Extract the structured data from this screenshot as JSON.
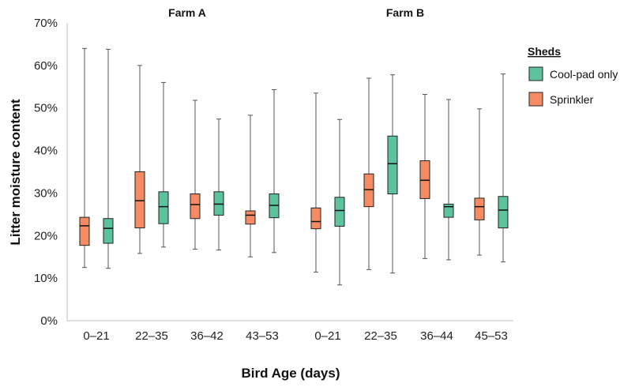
{
  "chart_data": {
    "type": "box",
    "ylabel": "Litter moisture content",
    "xlabel": "Bird Age (days)",
    "ylim": [
      0,
      70
    ],
    "yticks": [
      "0%",
      "10%",
      "20%",
      "30%",
      "40%",
      "50%",
      "60%",
      "70%"
    ],
    "grid": false,
    "legend": {
      "title": "Sheds",
      "placement": "right",
      "entries": [
        {
          "name": "Cool-pad only",
          "color": "#5dc39c"
        },
        {
          "name": "Sprinkler",
          "color": "#f58a63"
        }
      ]
    },
    "panels": [
      {
        "title": "Farm A",
        "groups": [
          {
            "category": "0–21",
            "sprinkler": {
              "min": 12.5,
              "q1": 17.7,
              "median": 22.3,
              "q3": 24.3,
              "max": 64.0
            },
            "cool_pad": {
              "min": 12.3,
              "q1": 18.2,
              "median": 21.7,
              "q3": 24.0,
              "max": 63.8
            }
          },
          {
            "category": "22–35",
            "sprinkler": {
              "min": 15.8,
              "q1": 21.8,
              "median": 28.2,
              "q3": 35.0,
              "max": 60.0
            },
            "cool_pad": {
              "min": 17.3,
              "q1": 22.8,
              "median": 26.8,
              "q3": 30.3,
              "max": 56.0
            }
          },
          {
            "category": "36–42",
            "sprinkler": {
              "min": 16.8,
              "q1": 24.0,
              "median": 27.3,
              "q3": 29.8,
              "max": 51.8
            },
            "cool_pad": {
              "min": 16.6,
              "q1": 24.8,
              "median": 27.4,
              "q3": 30.3,
              "max": 47.4
            }
          },
          {
            "category": "43–53",
            "sprinkler": {
              "min": 15.0,
              "q1": 22.7,
              "median": 24.8,
              "q3": 25.8,
              "max": 48.3
            },
            "cool_pad": {
              "min": 16.0,
              "q1": 24.2,
              "median": 27.1,
              "q3": 29.8,
              "max": 54.3
            }
          }
        ]
      },
      {
        "title": "Farm B",
        "groups": [
          {
            "category": "0–21",
            "sprinkler": {
              "min": 11.4,
              "q1": 21.6,
              "median": 23.3,
              "q3": 26.5,
              "max": 53.5
            },
            "cool_pad": {
              "min": 8.4,
              "q1": 22.2,
              "median": 25.9,
              "q3": 29.0,
              "max": 47.3
            }
          },
          {
            "category": "22–35",
            "sprinkler": {
              "min": 12.0,
              "q1": 26.8,
              "median": 30.8,
              "q3": 34.5,
              "max": 57.0
            },
            "cool_pad": {
              "min": 11.2,
              "q1": 29.8,
              "median": 36.9,
              "q3": 43.4,
              "max": 57.8
            }
          },
          {
            "category": "36–44",
            "sprinkler": {
              "min": 14.6,
              "q1": 28.7,
              "median": 33.0,
              "q3": 37.6,
              "max": 53.2
            },
            "cool_pad": {
              "min": 14.3,
              "q1": 24.3,
              "median": 26.8,
              "q3": 27.4,
              "max": 52.0
            }
          },
          {
            "category": "45–53",
            "sprinkler": {
              "min": 15.4,
              "q1": 23.7,
              "median": 26.8,
              "q3": 28.8,
              "max": 49.8
            },
            "cool_pad": {
              "min": 13.8,
              "q1": 21.8,
              "median": 26.0,
              "q3": 29.2,
              "max": 58.0
            }
          }
        ]
      }
    ]
  }
}
